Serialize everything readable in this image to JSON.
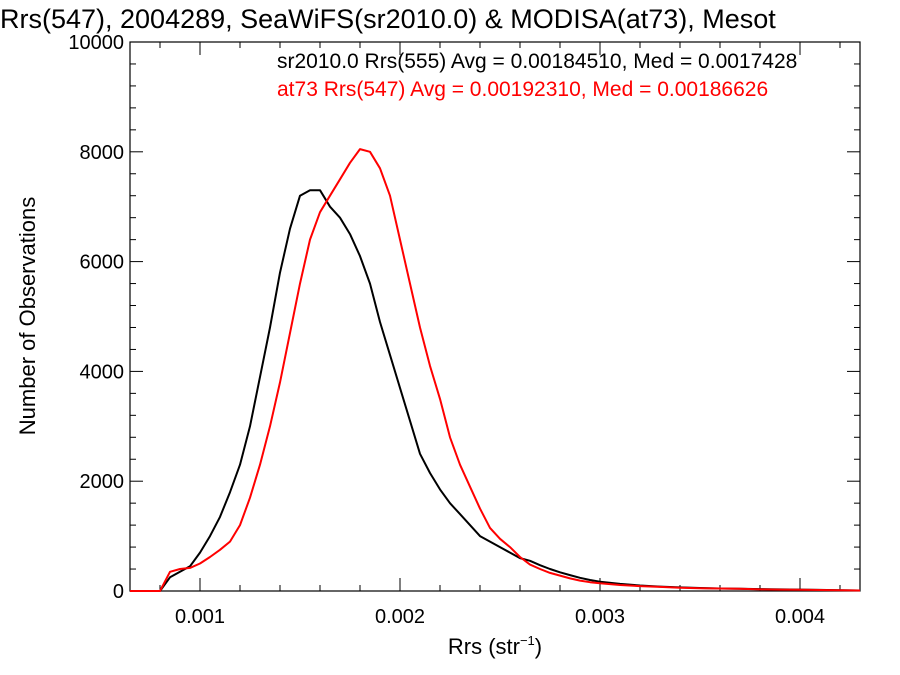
{
  "chart_data": {
    "type": "line",
    "title": "Rrs(547), 2004289, SeaWiFS(sr2010.0) & MODISA(at73), Mesot",
    "xlabel": "Rrs (str",
    "xlabel_sup": "−1",
    "xlabel_close": ")",
    "ylabel": "Number of Observations",
    "xlim": [
      0.00065,
      0.0043
    ],
    "ylim": [
      0,
      10000
    ],
    "x_ticks": [
      0.001,
      0.002,
      0.003,
      0.004
    ],
    "x_tick_labels": [
      "0.001",
      "0.002",
      "0.003",
      "0.004"
    ],
    "y_ticks": [
      0,
      2000,
      4000,
      6000,
      8000,
      10000
    ],
    "y_tick_labels": [
      "0",
      "2000",
      "4000",
      "6000",
      "8000",
      "10000"
    ],
    "grid": false,
    "legend_position": "top-right",
    "series": [
      {
        "name": "sr2010.0 Rrs(555) Avg = 0.00184510, Med = 0.0017428",
        "color": "#000000",
        "x": [
          0.00065,
          0.00075,
          0.0008,
          0.00085,
          0.0009,
          0.00095,
          0.001,
          0.00105,
          0.0011,
          0.00115,
          0.0012,
          0.00125,
          0.0013,
          0.00135,
          0.0014,
          0.00145,
          0.0015,
          0.00155,
          0.0016,
          0.00165,
          0.0017,
          0.00175,
          0.0018,
          0.00185,
          0.0019,
          0.00195,
          0.002,
          0.00205,
          0.0021,
          0.00215,
          0.0022,
          0.00225,
          0.0023,
          0.00235,
          0.0024,
          0.00245,
          0.0025,
          0.00255,
          0.0026,
          0.00265,
          0.0027,
          0.00275,
          0.0028,
          0.00285,
          0.0029,
          0.00295,
          0.003,
          0.0031,
          0.0032,
          0.0033,
          0.0034,
          0.0035,
          0.0036,
          0.0037,
          0.0038,
          0.0039,
          0.004,
          0.0041,
          0.0042,
          0.0043
        ],
        "values": [
          0,
          0,
          0,
          250,
          350,
          450,
          700,
          1000,
          1350,
          1800,
          2300,
          3000,
          3900,
          4800,
          5800,
          6600,
          7200,
          7300,
          7300,
          7000,
          6800,
          6500,
          6100,
          5600,
          4900,
          4300,
          3700,
          3100,
          2500,
          2150,
          1850,
          1600,
          1400,
          1200,
          1000,
          900,
          800,
          700,
          600,
          550,
          470,
          400,
          340,
          290,
          240,
          200,
          170,
          130,
          100,
          80,
          65,
          55,
          45,
          40,
          35,
          30,
          25,
          20,
          15,
          10
        ]
      },
      {
        "name": "at73 Rrs(547) Avg = 0.00192310, Med = 0.00186626",
        "color": "#ff0000",
        "x": [
          0.00065,
          0.00075,
          0.0008,
          0.00085,
          0.0009,
          0.00095,
          0.001,
          0.00105,
          0.0011,
          0.00115,
          0.0012,
          0.00125,
          0.0013,
          0.00135,
          0.0014,
          0.00145,
          0.0015,
          0.00155,
          0.0016,
          0.00165,
          0.0017,
          0.00175,
          0.0018,
          0.00185,
          0.0019,
          0.00195,
          0.002,
          0.00205,
          0.0021,
          0.00215,
          0.0022,
          0.00225,
          0.0023,
          0.00235,
          0.0024,
          0.00245,
          0.0025,
          0.00255,
          0.0026,
          0.00265,
          0.0027,
          0.00275,
          0.0028,
          0.00285,
          0.0029,
          0.00295,
          0.003,
          0.0031,
          0.0032,
          0.0033,
          0.0034,
          0.0035,
          0.0036,
          0.0037,
          0.0038,
          0.0039,
          0.004,
          0.0041,
          0.0042,
          0.0043
        ],
        "values": [
          0,
          0,
          0,
          350,
          400,
          420,
          500,
          620,
          750,
          900,
          1200,
          1700,
          2300,
          3000,
          3800,
          4700,
          5600,
          6400,
          6900,
          7200,
          7500,
          7800,
          8050,
          8000,
          7700,
          7200,
          6400,
          5600,
          4800,
          4100,
          3500,
          2800,
          2300,
          1900,
          1500,
          1150,
          950,
          800,
          620,
          480,
          400,
          330,
          280,
          230,
          190,
          160,
          140,
          110,
          90,
          75,
          60,
          50,
          45,
          40,
          30,
          25,
          22,
          18,
          14,
          10
        ]
      }
    ]
  }
}
